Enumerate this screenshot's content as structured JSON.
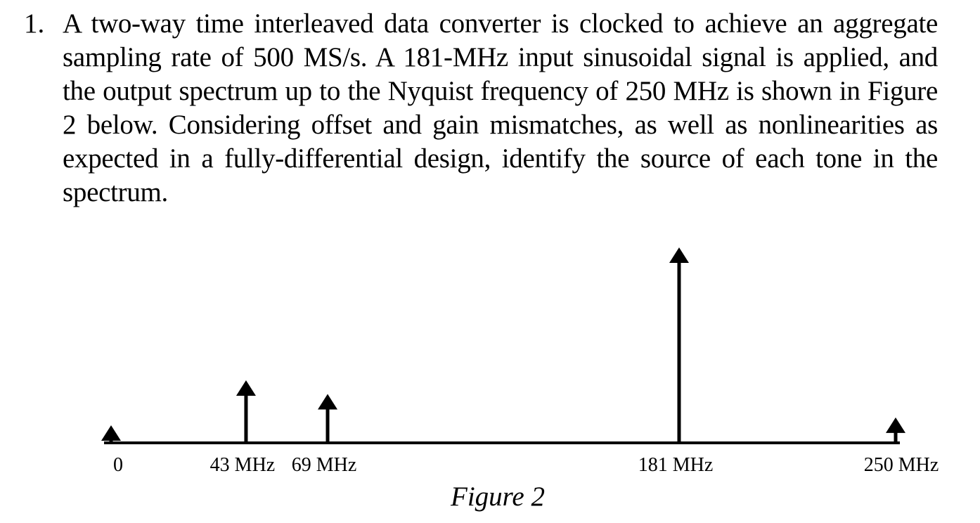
{
  "problem": {
    "number": "1.",
    "text": "A two-way time interleaved data converter is clocked to achieve an aggregate sampling rate of 500 MS/s.  A 181-MHz input sinusoidal signal is applied, and the output spectrum up to the Nyquist frequency of 250 MHz is shown in Figure 2 below.  Considering offset and gain mismatches, as well as nonlinearities as expected in a fully-differential design, identify the source of each tone in the spectrum."
  },
  "figure": {
    "caption": "Figure 2"
  },
  "chart_data": {
    "type": "bar",
    "x_unit": "MHz",
    "xlim": [
      0,
      250
    ],
    "tones": [
      {
        "freq": 0,
        "label": "0",
        "relative_height": 0.09
      },
      {
        "freq": 43,
        "label": "43 MHz",
        "relative_height": 0.32
      },
      {
        "freq": 69,
        "label": "69 MHz",
        "relative_height": 0.25
      },
      {
        "freq": 181,
        "label": "181 MHz",
        "relative_height": 1.0
      },
      {
        "freq": 250,
        "label": "250 MHz",
        "relative_height": 0.13
      }
    ]
  }
}
